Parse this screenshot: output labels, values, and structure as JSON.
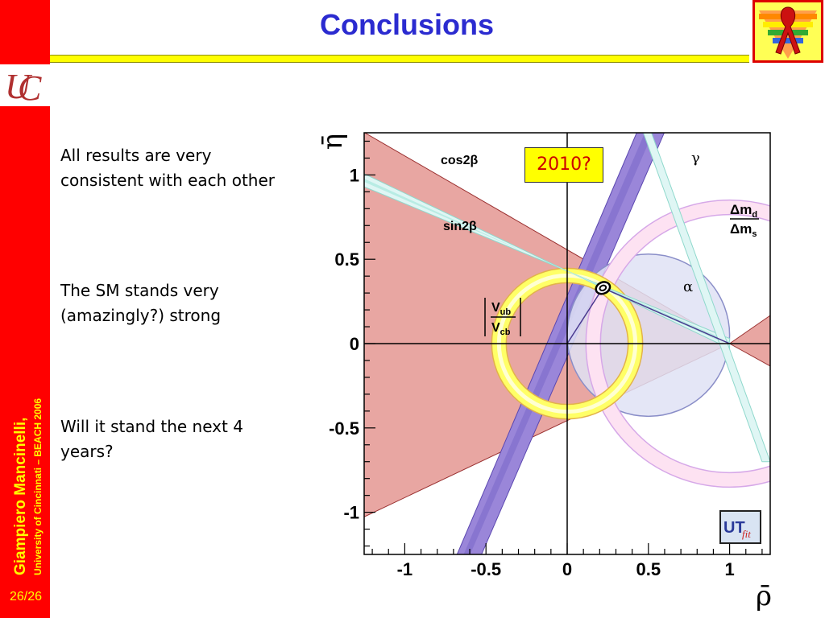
{
  "slide": {
    "title": "Conclusions",
    "page_number": "26/26",
    "author": "Giampiero Mancinelli,",
    "affiliation": "University of Cincinnati – BEACH 2006",
    "bullets": [
      "All results are very\nconsistent with each other",
      "The SM stands very\n(amazingly?) strong",
      "Will it stand the next 4\nyears?"
    ],
    "annotation": "2010?",
    "logo_icon": "uc-logo-icon",
    "ribbon_icon": "red-ribbon-icon"
  },
  "chart_data": {
    "type": "other",
    "xlabel": "ρ̄",
    "ylabel": "η̄",
    "xlim": [
      -1.25,
      1.25
    ],
    "ylim": [
      -1.25,
      1.25
    ],
    "x_ticks": [
      "-1",
      "-0.5",
      "0",
      "0.5",
      "1"
    ],
    "y_ticks": [
      "1",
      "0.5",
      "0",
      "-0.5",
      "-1"
    ],
    "constraint_labels": {
      "cos2beta": "cos2β",
      "sin2beta": "sin2β",
      "gamma": "γ",
      "alpha": "α",
      "dm_num": "Δm",
      "dm_num_sub": "d",
      "dm_den": "Δm",
      "dm_den_sub": "s",
      "vub": "V",
      "vub_sub": "ub",
      "vcb": "V",
      "vcb_sub": "cb"
    },
    "apex": {
      "rho": 0.22,
      "eta": 0.33
    },
    "vub_ring_radius": 0.42,
    "dm_ring": {
      "center_rho": 1.0,
      "radius": 0.84
    },
    "alpha_circle": {
      "center_rho": 0.5,
      "radius": 0.5
    },
    "colors": {
      "cos2beta": "#e8a6a2",
      "gamma": "#9a86d9",
      "sin2beta": "#dff6f4",
      "vub": "#ffff66",
      "dm": "#fde2f2",
      "alpha": "#dfe2f4"
    },
    "logo": "UTfit"
  }
}
